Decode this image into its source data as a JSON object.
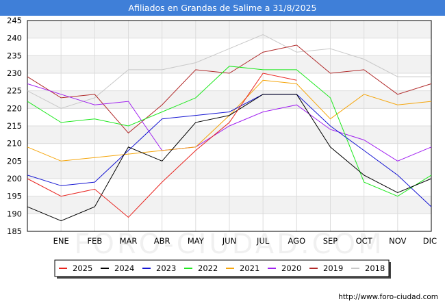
{
  "title": "Afiliados en Grandas de Salime a 31/8/2025",
  "source": "http://www.foro-ciudad.com",
  "watermark": "FORO-CIUDAD.COM",
  "chart_data": {
    "type": "line",
    "title": "Afiliados en Grandas de Salime a 31/8/2025",
    "categories": [
      "",
      "ENE",
      "FEB",
      "MAR",
      "ABR",
      "MAY",
      "JUN",
      "JUL",
      "AGO",
      "SEP",
      "OCT",
      "NOV",
      "DIC"
    ],
    "ylim": [
      185,
      245
    ],
    "yticks": [
      185,
      190,
      195,
      200,
      205,
      210,
      215,
      220,
      225,
      230,
      235,
      240,
      245
    ],
    "grid": true,
    "legend_position": "bottom",
    "series": [
      {
        "name": "2025",
        "color": "#e8231e",
        "values": [
          200,
          195,
          197,
          189,
          199,
          208,
          216,
          230,
          228,
          null,
          null,
          null,
          null
        ]
      },
      {
        "name": "2024",
        "color": "#000000",
        "values": [
          192,
          188,
          192,
          209,
          205,
          216,
          218,
          224,
          224,
          209,
          201,
          196,
          200
        ]
      },
      {
        "name": "2023",
        "color": "#1414d2",
        "values": [
          201,
          198,
          199,
          208,
          217,
          218,
          219,
          224,
          224,
          215,
          208,
          201,
          192
        ]
      },
      {
        "name": "2022",
        "color": "#1ee81e",
        "values": [
          222,
          216,
          217,
          215,
          219,
          223,
          232,
          231,
          231,
          223,
          199,
          195,
          201
        ]
      },
      {
        "name": "2021",
        "color": "#f5a50a",
        "values": [
          209,
          205,
          206,
          207,
          208,
          209,
          218,
          228,
          227,
          217,
          224,
          221,
          222
        ]
      },
      {
        "name": "2020",
        "color": "#a020f0",
        "values": [
          227,
          224,
          221,
          222,
          208,
          209,
          215,
          219,
          221,
          214,
          211,
          205,
          209
        ]
      },
      {
        "name": "2019",
        "color": "#b02828",
        "values": [
          229,
          223,
          224,
          213,
          221,
          231,
          230,
          236,
          238,
          230,
          231,
          224,
          227
        ]
      },
      {
        "name": "2018",
        "color": "#c8c8c8",
        "values": [
          225,
          220,
          223,
          231,
          231,
          233,
          237,
          241,
          236,
          237,
          234,
          229,
          229
        ]
      }
    ]
  }
}
